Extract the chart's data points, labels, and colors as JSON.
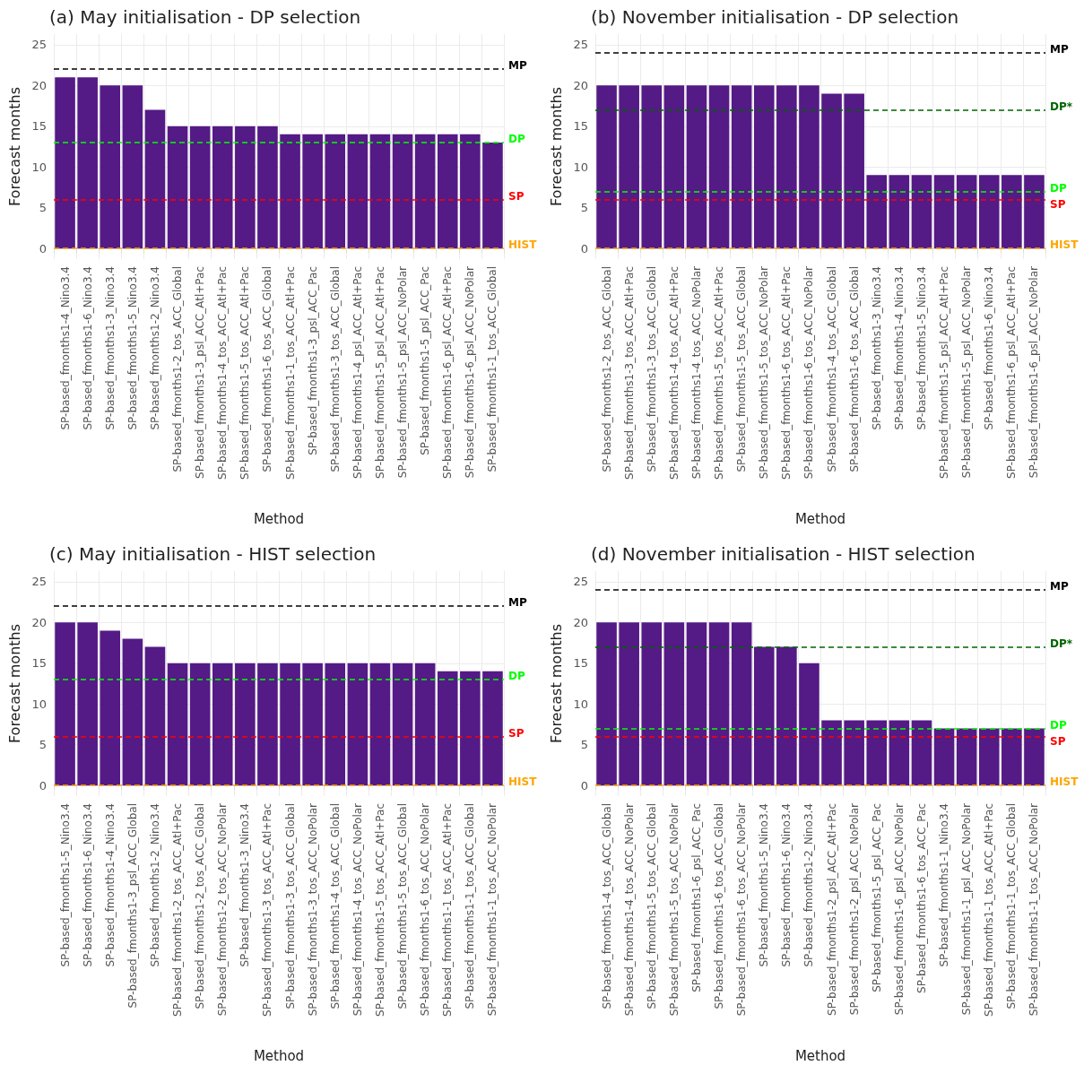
{
  "chart_data": [
    {
      "type": "bar",
      "title": "(a) May initialisation - DP selection",
      "xlabel": "Method",
      "ylabel": "Forecast months",
      "categories": [
        "SP-based_fmonths1-4_Nino3.4",
        "SP-based_fmonths1-6_Nino3.4",
        "SP-based_fmonths1-3_Nino3.4",
        "SP-based_fmonths1-5_Nino3.4",
        "SP-based_fmonths1-2_Nino3.4",
        "SP-based_fmonths1-2_tos_ACC_Global",
        "SP-based_fmonths1-3_psl_ACC_Atl+Pac",
        "SP-based_fmonths1-4_tos_ACC_Atl+Pac",
        "SP-based_fmonths1-5_tos_ACC_Atl+Pac",
        "SP-based_fmonths1-6_tos_ACC_Global",
        "SP-based_fmonths1-1_tos_ACC_Atl+Pac",
        "SP-based_fmonths1-3_psl_ACC_Pac",
        "SP-based_fmonths1-3_tos_ACC_Global",
        "SP-based_fmonths1-4_psl_ACC_Atl+Pac",
        "SP-based_fmonths1-5_psl_ACC_Atl+Pac",
        "SP-based_fmonths1-5_psl_ACC_NoPolar",
        "SP-based_fmonths1-5_psl_ACC_Pac",
        "SP-based_fmonths1-6_psl_ACC_Atl+Pac",
        "SP-based_fmonths1-6_psl_ACC_NoPolar",
        "SP-based_fmonths1-1_tos_ACC_Global"
      ],
      "values": [
        21,
        21,
        20,
        20,
        17,
        15,
        15,
        15,
        15,
        15,
        14,
        14,
        14,
        14,
        14,
        14,
        14,
        14,
        14,
        13
      ],
      "color": "#541a85",
      "ylim": [
        -1.3,
        26.3
      ],
      "yticks": [
        0,
        5,
        10,
        15,
        20,
        25
      ],
      "grid": true,
      "ref_lines": [
        {
          "axis": "y",
          "value": 22,
          "label": "MP",
          "color": "#000000",
          "line_style": "dashed"
        },
        {
          "axis": "y",
          "value": 13,
          "label": "DP",
          "color": "#00ff00",
          "line_style": "dashed"
        },
        {
          "axis": "y",
          "value": 6,
          "label": "SP",
          "color": "#ff0000",
          "line_style": "dashed"
        },
        {
          "axis": "y",
          "value": 0,
          "label": "HIST",
          "color": "#ffa500",
          "line_style": "dashed"
        }
      ]
    },
    {
      "type": "bar",
      "title": "(b) November initialisation - DP selection",
      "xlabel": "Method",
      "ylabel": "Forecast months",
      "categories": [
        "SP-based_fmonths1-2_tos_ACC_Global",
        "SP-based_fmonths1-3_tos_ACC_Atl+Pac",
        "SP-based_fmonths1-3_tos_ACC_Global",
        "SP-based_fmonths1-4_tos_ACC_Atl+Pac",
        "SP-based_fmonths1-4_tos_ACC_NoPolar",
        "SP-based_fmonths1-5_tos_ACC_Atl+Pac",
        "SP-based_fmonths1-5_tos_ACC_Global",
        "SP-based_fmonths1-5_tos_ACC_NoPolar",
        "SP-based_fmonths1-6_tos_ACC_Atl+Pac",
        "SP-based_fmonths1-6_tos_ACC_NoPolar",
        "SP-based_fmonths1-4_tos_ACC_Global",
        "SP-based_fmonths1-6_tos_ACC_Global",
        "SP-based_fmonths1-3_Nino3.4",
        "SP-based_fmonths1-4_Nino3.4",
        "SP-based_fmonths1-5_Nino3.4",
        "SP-based_fmonths1-5_psl_ACC_Atl+Pac",
        "SP-based_fmonths1-5_psl_ACC_NoPolar",
        "SP-based_fmonths1-6_Nino3.4",
        "SP-based_fmonths1-6_psl_ACC_Atl+Pac",
        "SP-based_fmonths1-6_psl_ACC_NoPolar"
      ],
      "values": [
        20,
        20,
        20,
        20,
        20,
        20,
        20,
        20,
        20,
        20,
        19,
        19,
        9,
        9,
        9,
        9,
        9,
        9,
        9,
        9
      ],
      "color": "#541a85",
      "ylim": [
        -1.3,
        26.3
      ],
      "yticks": [
        0,
        5,
        10,
        15,
        20,
        25
      ],
      "grid": true,
      "ref_lines": [
        {
          "axis": "y",
          "value": 24,
          "label": "MP",
          "color": "#000000",
          "line_style": "dashed"
        },
        {
          "axis": "y",
          "value": 17,
          "label": "DP*",
          "color": "#006400",
          "line_style": "dashed"
        },
        {
          "axis": "y",
          "value": 7,
          "label": "DP",
          "color": "#00ff00",
          "line_style": "dashed"
        },
        {
          "axis": "y",
          "value": 6,
          "label": "SP",
          "color": "#ff0000",
          "line_style": "dashed"
        },
        {
          "axis": "y",
          "value": 0,
          "label": "HIST",
          "color": "#ffa500",
          "line_style": "dashed"
        }
      ]
    },
    {
      "type": "bar",
      "title": "(c) May initialisation - HIST selection",
      "xlabel": "Method",
      "ylabel": "Forecast months",
      "categories": [
        "SP-based_fmonths1-5_Nino3.4",
        "SP-based_fmonths1-6_Nino3.4",
        "SP-based_fmonths1-4_Nino3.4",
        "SP-based_fmonths1-3_psl_ACC_Global",
        "SP-based_fmonths1-2_Nino3.4",
        "SP-based_fmonths1-2_tos_ACC_Atl+Pac",
        "SP-based_fmonths1-2_tos_ACC_Global",
        "SP-based_fmonths1-2_tos_ACC_NoPolar",
        "SP-based_fmonths1-3_Nino3.4",
        "SP-based_fmonths1-3_tos_ACC_Atl+Pac",
        "SP-based_fmonths1-3_tos_ACC_Global",
        "SP-based_fmonths1-3_tos_ACC_NoPolar",
        "SP-based_fmonths1-4_tos_ACC_Global",
        "SP-based_fmonths1-4_tos_ACC_NoPolar",
        "SP-based_fmonths1-5_tos_ACC_Atl+Pac",
        "SP-based_fmonths1-5_tos_ACC_Global",
        "SP-based_fmonths1-6_tos_ACC_NoPolar",
        "SP-based_fmonths1-1_tos_ACC_Atl+Pac",
        "SP-based_fmonths1-1_tos_ACC_Global",
        "SP-based_fmonths1-1_tos_ACC_NoPolar"
      ],
      "values": [
        20,
        20,
        19,
        18,
        17,
        15,
        15,
        15,
        15,
        15,
        15,
        15,
        15,
        15,
        15,
        15,
        15,
        14,
        14,
        14
      ],
      "color": "#541a85",
      "ylim": [
        -1.3,
        26.3
      ],
      "yticks": [
        0,
        5,
        10,
        15,
        20,
        25
      ],
      "grid": true,
      "ref_lines": [
        {
          "axis": "y",
          "value": 22,
          "label": "MP",
          "color": "#000000",
          "line_style": "dashed"
        },
        {
          "axis": "y",
          "value": 13,
          "label": "DP",
          "color": "#00ff00",
          "line_style": "dashed"
        },
        {
          "axis": "y",
          "value": 6,
          "label": "SP",
          "color": "#ff0000",
          "line_style": "dashed"
        },
        {
          "axis": "y",
          "value": 0,
          "label": "HIST",
          "color": "#ffa500",
          "line_style": "dashed"
        }
      ]
    },
    {
      "type": "bar",
      "title": "(d) November initialisation - HIST selection",
      "xlabel": "Method",
      "ylabel": "Forecast months",
      "categories": [
        "SP-based_fmonths1-4_tos_ACC_Global",
        "SP-based_fmonths1-4_tos_ACC_NoPolar",
        "SP-based_fmonths1-5_tos_ACC_Global",
        "SP-based_fmonths1-5_tos_ACC_NoPolar",
        "SP-based_fmonths1-6_psl_ACC_Pac",
        "SP-based_fmonths1-6_tos_ACC_Global",
        "SP-based_fmonths1-6_tos_ACC_NoPolar",
        "SP-based_fmonths1-5_Nino3.4",
        "SP-based_fmonths1-6_Nino3.4",
        "SP-based_fmonths1-2_Nino3.4",
        "SP-based_fmonths1-2_psl_ACC_Atl+Pac",
        "SP-based_fmonths1-2_psl_ACC_NoPolar",
        "SP-based_fmonths1-5_psl_ACC_Pac",
        "SP-based_fmonths1-6_psl_ACC_NoPolar",
        "SP-based_fmonths1-6_tos_ACC_Pac",
        "SP-based_fmonths1-1_Nino3.4",
        "SP-based_fmonths1-1_psl_ACC_NoPolar",
        "SP-based_fmonths1-1_tos_ACC_Atl+Pac",
        "SP-based_fmonths1-1_tos_ACC_Global",
        "SP-based_fmonths1-1_tos_ACC_NoPolar"
      ],
      "values": [
        20,
        20,
        20,
        20,
        20,
        20,
        20,
        17,
        17,
        15,
        8,
        8,
        8,
        8,
        8,
        7,
        7,
        7,
        7,
        7
      ],
      "color": "#541a85",
      "ylim": [
        -1.3,
        26.3
      ],
      "yticks": [
        0,
        5,
        10,
        15,
        20,
        25
      ],
      "grid": true,
      "ref_lines": [
        {
          "axis": "y",
          "value": 24,
          "label": "MP",
          "color": "#000000",
          "line_style": "dashed"
        },
        {
          "axis": "y",
          "value": 17,
          "label": "DP*",
          "color": "#006400",
          "line_style": "dashed"
        },
        {
          "axis": "y",
          "value": 7,
          "label": "DP",
          "color": "#00ff00",
          "line_style": "dashed"
        },
        {
          "axis": "y",
          "value": 6,
          "label": "SP",
          "color": "#ff0000",
          "line_style": "dashed"
        },
        {
          "axis": "y",
          "value": 0,
          "label": "HIST",
          "color": "#ffa500",
          "line_style": "dashed"
        }
      ]
    }
  ]
}
